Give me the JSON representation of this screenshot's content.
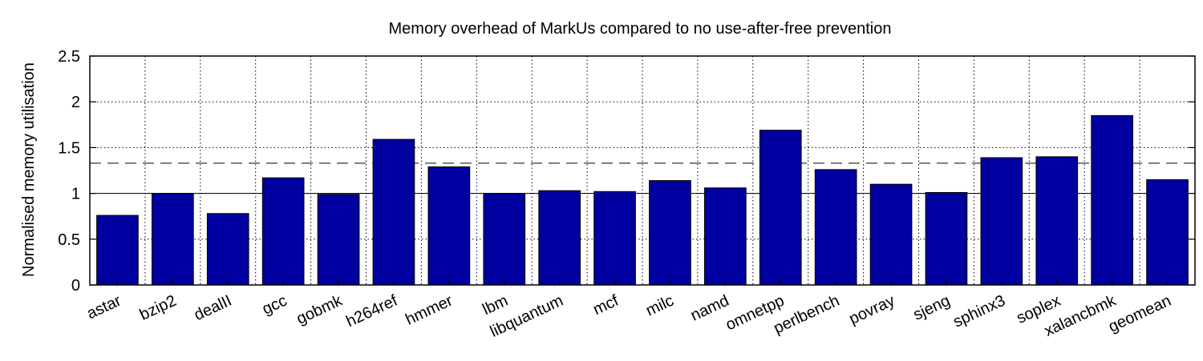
{
  "chart_data": {
    "type": "bar",
    "title": "Memory overhead of MarkUs compared to no use-after-free prevention",
    "xlabel": "",
    "ylabel": "Normalised memory utilisation",
    "ylim": [
      0,
      2.5
    ],
    "yticks": [
      "0",
      "0.5",
      "1",
      "1.5",
      "2",
      "2.5"
    ],
    "categories": [
      "astar",
      "bzip2",
      "dealII",
      "gcc",
      "gobmk",
      "h264ref",
      "hmmer",
      "lbm",
      "libquantum",
      "mcf",
      "milc",
      "namd",
      "omnetpp",
      "perlbench",
      "povray",
      "sjeng",
      "sphinx3",
      "soplex",
      "xalancbmk",
      "geomean"
    ],
    "values": [
      0.76,
      1.0,
      0.78,
      1.17,
      0.99,
      1.59,
      1.29,
      1.0,
      1.03,
      1.02,
      1.14,
      1.06,
      1.69,
      1.26,
      1.1,
      1.01,
      1.39,
      1.4,
      1.85,
      1.15
    ],
    "reference_lines": [
      {
        "value": 1.0,
        "style": "solid"
      },
      {
        "value": 1.33,
        "style": "dashed"
      }
    ],
    "grid": true,
    "bar_color": "#0000a0",
    "bar_outline": "#000000"
  }
}
